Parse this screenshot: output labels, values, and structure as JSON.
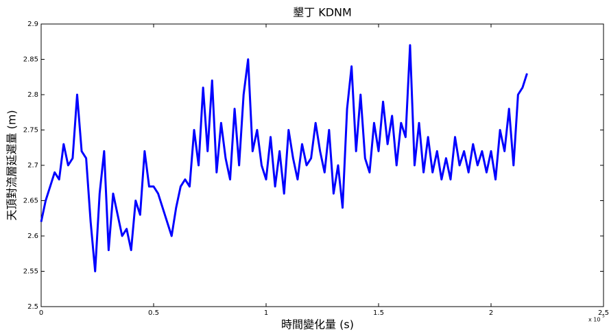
{
  "chart_data": {
    "type": "line",
    "title": "墾丁 KDNM",
    "x_label": "時間變化量 (s)",
    "y_label": "天頂對流層延遲量 (m)",
    "x_scale_label": "x 10",
    "x_scale_exponent": "5",
    "xlim": [
      0,
      2.5
    ],
    "xticks": [
      0,
      0.5,
      1,
      1.5,
      2,
      2.5
    ],
    "ylim": [
      2.5,
      2.9
    ],
    "yticks": [
      2.5,
      2.55,
      2.6,
      2.65,
      2.7,
      2.75,
      2.8,
      2.85,
      2.9
    ],
    "x": [
      0,
      0.02,
      0.04,
      0.06,
      0.08,
      0.1,
      0.12,
      0.14,
      0.16,
      0.18,
      0.2,
      0.22,
      0.24,
      0.26,
      0.28,
      0.3,
      0.32,
      0.34,
      0.36,
      0.38,
      0.4,
      0.42,
      0.44,
      0.46,
      0.48,
      0.5,
      0.52,
      0.54,
      0.56,
      0.58,
      0.6,
      0.62,
      0.64,
      0.66,
      0.68,
      0.7,
      0.72,
      0.74,
      0.76,
      0.78,
      0.8,
      0.82,
      0.84,
      0.86,
      0.88,
      0.9,
      0.92,
      0.94,
      0.96,
      0.98,
      1.0,
      1.02,
      1.04,
      1.06,
      1.08,
      1.1,
      1.12,
      1.14,
      1.16,
      1.18,
      1.2,
      1.22,
      1.24,
      1.26,
      1.28,
      1.3,
      1.32,
      1.34,
      1.36,
      1.38,
      1.4,
      1.42,
      1.44,
      1.46,
      1.48,
      1.5,
      1.52,
      1.54,
      1.56,
      1.58,
      1.6,
      1.62,
      1.64,
      1.66,
      1.68,
      1.7,
      1.72,
      1.74,
      1.76,
      1.78,
      1.8,
      1.82,
      1.84,
      1.86,
      1.88,
      1.9,
      1.92,
      1.94,
      1.96,
      1.98,
      2.0,
      2.02,
      2.04,
      2.06,
      2.08,
      2.1,
      2.12,
      2.14,
      2.16
    ],
    "series": [
      {
        "name": "KDNM",
        "color": "#0000ff",
        "values": [
          2.62,
          2.65,
          2.67,
          2.69,
          2.68,
          2.73,
          2.7,
          2.71,
          2.8,
          2.72,
          2.71,
          2.62,
          2.55,
          2.66,
          2.72,
          2.58,
          2.66,
          2.63,
          2.6,
          2.61,
          2.58,
          2.65,
          2.63,
          2.72,
          2.67,
          2.67,
          2.66,
          2.64,
          2.62,
          2.6,
          2.64,
          2.67,
          2.68,
          2.67,
          2.75,
          2.7,
          2.81,
          2.72,
          2.82,
          2.69,
          2.76,
          2.71,
          2.68,
          2.78,
          2.7,
          2.8,
          2.85,
          2.72,
          2.75,
          2.7,
          2.68,
          2.74,
          2.67,
          2.72,
          2.66,
          2.75,
          2.71,
          2.68,
          2.73,
          2.7,
          2.71,
          2.76,
          2.72,
          2.69,
          2.75,
          2.66,
          2.7,
          2.64,
          2.78,
          2.84,
          2.72,
          2.8,
          2.71,
          2.69,
          2.76,
          2.72,
          2.79,
          2.73,
          2.77,
          2.7,
          2.76,
          2.74,
          2.87,
          2.7,
          2.76,
          2.69,
          2.74,
          2.69,
          2.72,
          2.68,
          2.71,
          2.68,
          2.74,
          2.7,
          2.72,
          2.69,
          2.73,
          2.7,
          2.72,
          2.69,
          2.72,
          2.68,
          2.75,
          2.72,
          2.78,
          2.7,
          2.8,
          2.81,
          2.83
        ]
      }
    ]
  }
}
